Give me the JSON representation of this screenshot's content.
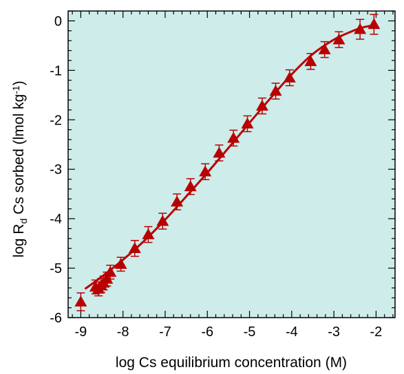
{
  "chart_data": {
    "type": "scatter",
    "xlabel": "log Cs equilibrium concentration  (M)",
    "ylabel": {
      "parts": [
        "log R",
        "d",
        " Cs sorbed  (lmol kg",
        "-1",
        ")"
      ]
    },
    "xlim": [
      -9.3,
      -1.55
    ],
    "ylim": [
      -6,
      0.2
    ],
    "xticks": [
      -9,
      -8,
      -7,
      -6,
      -5,
      -4,
      -3,
      -2
    ],
    "yticks": [
      0,
      -1,
      -2,
      -3,
      -4,
      -5,
      -6
    ],
    "xticklabels": [
      "-9",
      "-8",
      "-7",
      "-6",
      "-5",
      "-4",
      "-3",
      "-2"
    ],
    "yticklabels": [
      "0",
      "-1",
      "-2",
      "-3",
      "-4",
      "-5",
      "-6"
    ],
    "grid": false,
    "background_color": "#cdecea",
    "series_color": "#b80000",
    "markers": {
      "x": [
        -9.0,
        -8.65,
        -8.58,
        -8.52,
        -8.46,
        -8.38,
        -8.3,
        -8.05,
        -7.72,
        -7.4,
        -7.06,
        -6.72,
        -6.4,
        -6.05,
        -5.72,
        -5.38,
        -5.05,
        -4.7,
        -4.38,
        -4.05,
        -3.55,
        -3.22,
        -2.88,
        -2.38,
        -2.05
      ],
      "y": [
        -5.68,
        -5.38,
        -5.42,
        -5.35,
        -5.3,
        -5.22,
        -5.08,
        -4.92,
        -4.6,
        -4.32,
        -4.05,
        -3.66,
        -3.35,
        -3.05,
        -2.67,
        -2.37,
        -2.08,
        -1.72,
        -1.42,
        -1.15,
        -0.82,
        -0.58,
        -0.38,
        -0.17,
        -0.07
      ],
      "err": [
        0.18,
        0.14,
        0.14,
        0.14,
        0.14,
        0.14,
        0.14,
        0.14,
        0.16,
        0.16,
        0.16,
        0.16,
        0.16,
        0.16,
        0.16,
        0.16,
        0.16,
        0.16,
        0.16,
        0.16,
        0.16,
        0.16,
        0.16,
        0.2,
        0.2
      ]
    },
    "fit_line": {
      "x": [
        -8.9,
        -8.5,
        -8.0,
        -7.5,
        -7.0,
        -6.5,
        -6.0,
        -5.5,
        -5.0,
        -4.5,
        -4.0,
        -3.5,
        -3.0,
        -2.6,
        -2.3,
        -2.0
      ],
      "y": [
        -5.42,
        -5.17,
        -4.83,
        -4.45,
        -4.02,
        -3.55,
        -3.07,
        -2.57,
        -2.06,
        -1.56,
        -1.08,
        -0.67,
        -0.38,
        -0.22,
        -0.13,
        -0.08
      ]
    }
  }
}
